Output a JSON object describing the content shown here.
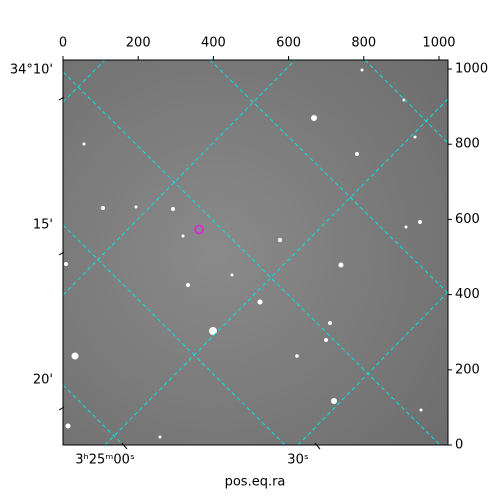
{
  "chart_data": {
    "type": "image",
    "xlabel": "pos.eq.ra",
    "xlim": [
      0,
      1024
    ],
    "xticks": [
      0,
      200,
      400,
      600,
      800,
      1000
    ],
    "ylim": [
      0,
      1024
    ],
    "yticks": [
      0,
      200,
      400,
      600,
      800,
      1000
    ],
    "dec_ticks": [
      "34°10'",
      "15'",
      "20'"
    ],
    "ra_ticks": [
      "3ʰ25ᵐ00ˢ",
      "30ˢ"
    ],
    "grid": true,
    "grid_color": "#00e5e5",
    "marker": {
      "x": 362,
      "y": 573,
      "color": "#d030d0"
    }
  }
}
